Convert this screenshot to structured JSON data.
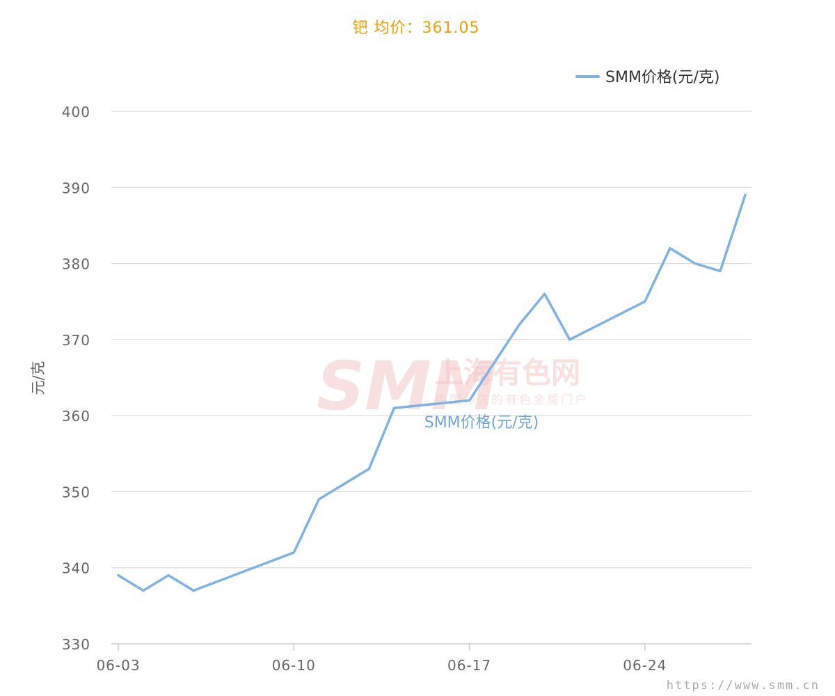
{
  "chart_data": {
    "type": "line",
    "title": "钯 均价：361.05",
    "ylabel": "元/克",
    "xlabel": "",
    "ylim": [
      330,
      400
    ],
    "yticks": [
      330,
      340,
      350,
      360,
      370,
      380,
      390,
      400
    ],
    "xlim": [
      "06-03",
      "06-28"
    ],
    "xticks": [
      "06-03",
      "06-10",
      "06-17",
      "06-24"
    ],
    "grid": true,
    "legend_position": "top-right",
    "series": [
      {
        "name": "SMM价格(元/克)",
        "color": "#7eb3e3",
        "x": [
          "06-03",
          "06-04",
          "06-05",
          "06-06",
          "06-10",
          "06-11",
          "06-13",
          "06-14",
          "06-17",
          "06-19",
          "06-20",
          "06-21",
          "06-24",
          "06-25",
          "06-26",
          "06-27",
          "06-28"
        ],
        "values": [
          339,
          337,
          339,
          337,
          342,
          349,
          353,
          361,
          362,
          372,
          376,
          370,
          375,
          382,
          380,
          379,
          389
        ]
      }
    ],
    "inline_series_label": "SMM价格(元/克)"
  },
  "watermark": {
    "logo": "SMM",
    "name": "上海有色网",
    "tagline": "中国领先的有色金属门户"
  },
  "source": "https://www.smm.cn",
  "colors": {
    "title": "#f0a000",
    "line": "#7eb3e3",
    "grid": "#e0e0e0",
    "axis": "#cccccc",
    "text": "#666666"
  }
}
